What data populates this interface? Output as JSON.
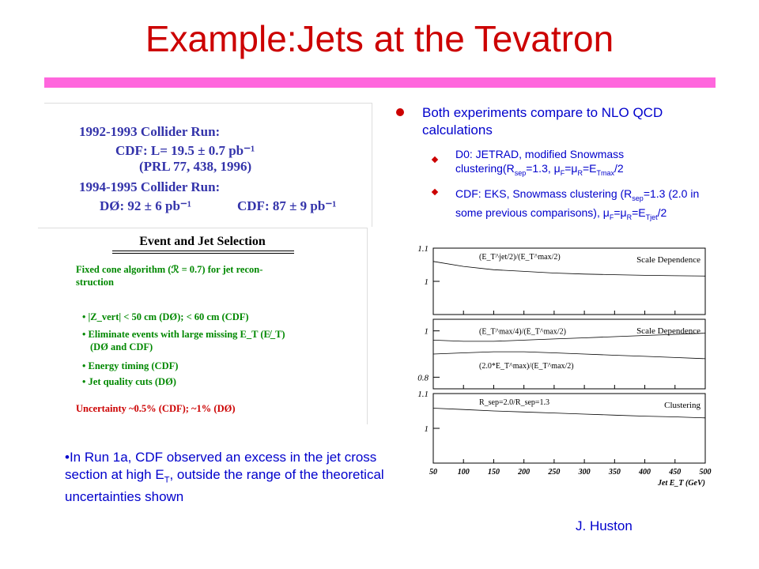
{
  "slide": {
    "title": "Example:Jets at the Tevatron",
    "author": "J. Huston"
  },
  "run_box": {
    "run1": "1992-1993 Collider Run:",
    "cdf_lum": "CDF: L= 19.5 ± 0.7 pb⁻¹",
    "prl": "(PRL 77, 438, 1996)",
    "run2": "1994-1995 Collider Run:",
    "d0_lum": "DØ:  92 ± 6 pb⁻¹",
    "cdf_lum2": "CDF:  87 ± 9 pb⁻¹"
  },
  "selection_box": {
    "heading": "Event and Jet Selection",
    "algo_line1": "Fixed cone algorithm (ℛ = 0.7) for jet recon-",
    "algo_line2": "struction",
    "items": [
      {
        "line1": "|Z_vert| < 50 cm (DØ); < 60 cm (CDF)",
        "line2": ""
      },
      {
        "line1": "Eliminate events with large missing E_T (E̸_T)",
        "line2": "(DØ and CDF)"
      },
      {
        "line1": "Energy timing (CDF)",
        "line2": ""
      },
      {
        "line1": "Jet quality cuts (DØ)",
        "line2": ""
      }
    ],
    "uncertainty": "Uncertainty ~0.5% (CDF); ~1% (DØ)"
  },
  "bullets": {
    "main": "Both experiments compare to NLO QCD calculations",
    "sub1": "D0: JETRAD, modified Snowmass clustering(R",
    "sub1_sep": "sep",
    "sub1_rest": "=1.3, μ",
    "sub1_f": "F",
    "sub1_eq": "=μ",
    "sub1_r": "R",
    "sub1_e": "=E",
    "sub1_tmax": "Tmax",
    "sub1_end": "/2",
    "sub2": "CDF: EKS, Snowmass clustering (R",
    "sub2_sep": "sep",
    "sub2_rest": "=1.3 (2.0 in some previous comparisons), μ",
    "sub2_f": "F",
    "sub2_eq": "=μ",
    "sub2_r": "R",
    "sub2_e": "=E",
    "sub2_tjet": "Tjet",
    "sub2_end": "/2"
  },
  "note": {
    "text_a": "•In Run 1a, CDF observed an excess in the jet cross section at high E",
    "text_t": "T",
    "text_b": ", outside the range of the theoretical uncertainties shown"
  },
  "colors": {
    "title": "#cc0000",
    "rule": "#ff66dd",
    "text": "#0000cc",
    "bullet": "#cc0000"
  },
  "chart_data": {
    "type": "line",
    "xlabel": "Jet E_T (GeV)",
    "x_ticks": [
      50,
      100,
      150,
      200,
      250,
      300,
      350,
      400,
      450,
      500
    ],
    "xlim": [
      50,
      500
    ],
    "panels": [
      {
        "label": "Scale Dependence",
        "ylim": [
          0.9,
          1.1
        ],
        "y_ticks": [
          "1.1",
          "1"
        ],
        "y_tick_values": [
          1.1,
          1.0
        ],
        "series": [
          {
            "name": "(E_T^jet/2)/(E_T^max/2)",
            "x": [
              50,
              100,
              150,
              200,
              250,
              300,
              350,
              400,
              450,
              500
            ],
            "y": [
              1.06,
              1.045,
              1.035,
              1.03,
              1.025,
              1.022,
              1.02,
              1.018,
              1.017,
              1.016
            ]
          }
        ]
      },
      {
        "label": "Scale Dependence",
        "ylim": [
          0.75,
          1.05
        ],
        "y_ticks": [
          "1",
          "0.8"
        ],
        "y_tick_values": [
          1.0,
          0.8
        ],
        "series": [
          {
            "name": "(E_T^max/4)/(E_T^max/2)",
            "x": [
              50,
              100,
              150,
              200,
              250,
              300,
              350,
              400,
              450,
              500
            ],
            "y": [
              0.96,
              0.955,
              0.955,
              0.96,
              0.965,
              0.97,
              0.975,
              0.98,
              0.985,
              0.99
            ]
          },
          {
            "name": "(2.0*E_T^max)/(E_T^max/2)",
            "x": [
              50,
              100,
              150,
              200,
              250,
              300,
              350,
              400,
              450,
              500
            ],
            "y": [
              0.9,
              0.905,
              0.91,
              0.91,
              0.905,
              0.9,
              0.895,
              0.89,
              0.885,
              0.88
            ]
          }
        ]
      },
      {
        "label": "Clustering",
        "ylim": [
          0.9,
          1.1
        ],
        "y_ticks": [
          "1.1",
          "1"
        ],
        "y_tick_values": [
          1.1,
          1.0
        ],
        "series": [
          {
            "name": "R_sep=2.0/R_sep=1.3",
            "x": [
              50,
              100,
              150,
              200,
              250,
              300,
              350,
              400,
              450,
              500
            ],
            "y": [
              1.058,
              1.054,
              1.05,
              1.047,
              1.044,
              1.041,
              1.038,
              1.035,
              1.033,
              1.03
            ]
          }
        ]
      }
    ]
  }
}
